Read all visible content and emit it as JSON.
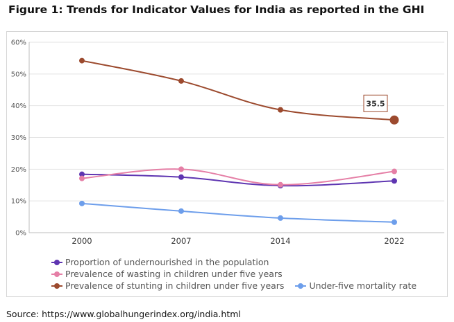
{
  "figure_title": "Figure 1: Trends for Indicator Values for India as reported in the GHI",
  "source": "Source: https://www.globalhungerindex.org/india.html",
  "chart_data": {
    "type": "line",
    "x": [
      "2000",
      "2007",
      "2014",
      "2022"
    ],
    "ylim": [
      0,
      60
    ],
    "yticks": [
      "0%",
      "10%",
      "20%",
      "30%",
      "40%",
      "50%",
      "60%"
    ],
    "grid": true,
    "legend_position": "bottom",
    "series": [
      {
        "name": "Proportion of undernourished in the population",
        "color": "#5e35b1",
        "values": [
          18.4,
          17.5,
          14.8,
          16.3
        ]
      },
      {
        "name": "Prevalence of wasting in children under five years",
        "color": "#e57fa6",
        "values": [
          17.1,
          20.0,
          15.1,
          19.3
        ]
      },
      {
        "name": "Prevalence of stunting in children under five years",
        "color": "#9c4a2e",
        "values": [
          54.2,
          47.8,
          38.7,
          35.5
        ]
      },
      {
        "name": "Under-five mortality rate",
        "color": "#6d9eeb",
        "values": [
          9.2,
          6.8,
          4.6,
          3.3
        ]
      }
    ],
    "annotation": {
      "series_index": 2,
      "point_index": 3,
      "text": "35.5"
    }
  }
}
